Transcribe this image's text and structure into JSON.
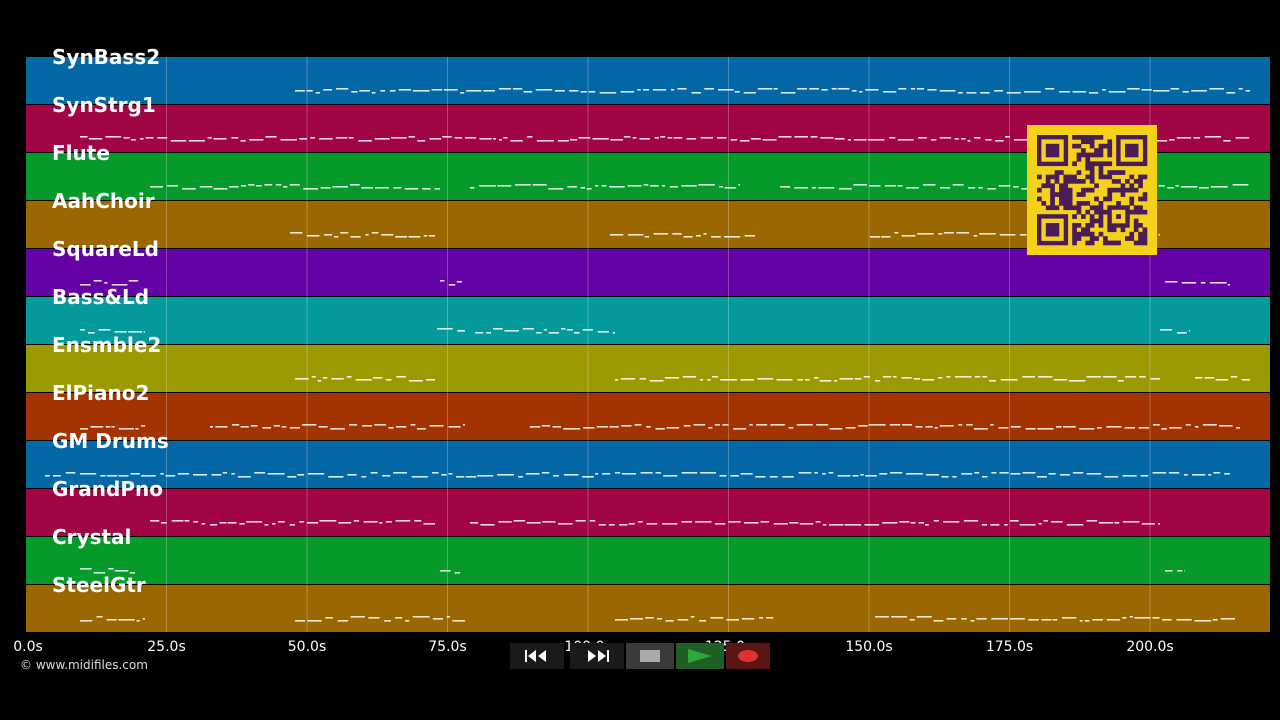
{
  "tracks": [
    {
      "name": "SynBass2",
      "color": "#0467a6"
    },
    {
      "name": "SynStrg1",
      "color": "#a10545"
    },
    {
      "name": "Flute",
      "color": "#059a2a"
    },
    {
      "name": "AahChoir",
      "color": "#9b6700"
    },
    {
      "name": "SquareLd",
      "color": "#6402a5"
    },
    {
      "name": "Bass&Ld",
      "color": "#049a9b"
    },
    {
      "name": "Ensmble2",
      "color": "#9b9a03"
    },
    {
      "name": "ElPiano2",
      "color": "#a33300"
    },
    {
      "name": "GM Drums",
      "color": "#0467a6"
    },
    {
      "name": "GrandPno",
      "color": "#a10545"
    },
    {
      "name": "Crystal",
      "color": "#059a2a"
    },
    {
      "name": "SteelGtr",
      "color": "#9b6700"
    }
  ],
  "timeline": {
    "ticks": [
      "0.0s",
      "25.0s",
      "50.0s",
      "75.0s",
      "100.0s",
      "125.0s",
      "150.0s",
      "175.0s",
      "200.0s"
    ]
  },
  "transport": {
    "rewind_icon": "rewind-icon",
    "fast_forward_icon": "fast-forward-icon",
    "stop_icon": "stop-icon",
    "play_icon": "play-icon",
    "record_icon": "record-icon",
    "play_color": "#2fa83a",
    "record_color": "#e03030"
  },
  "copyright": "© www.midifiles.com",
  "qr": {
    "fg": "#f5d21a",
    "bg": "#4a1d58"
  }
}
